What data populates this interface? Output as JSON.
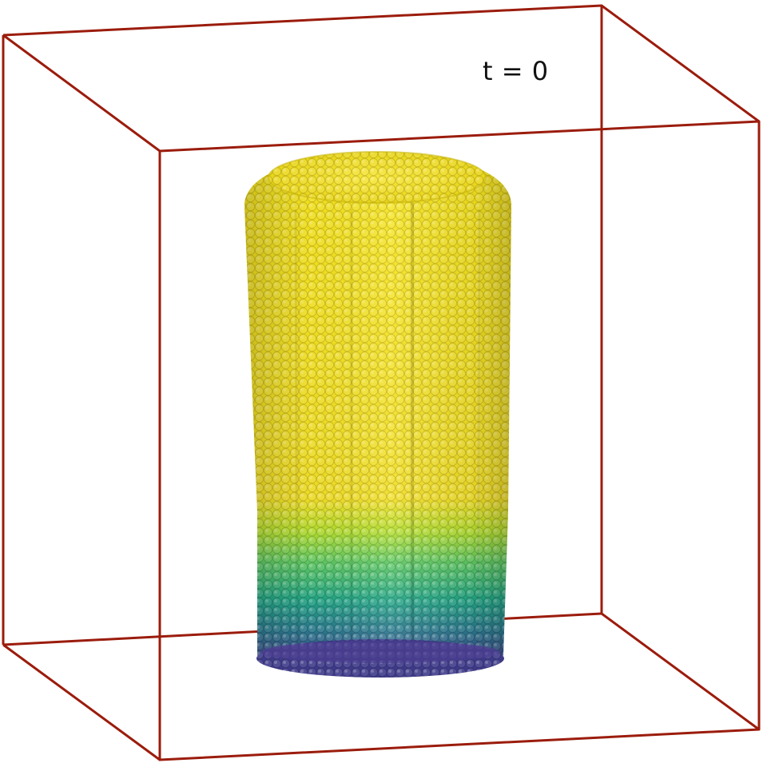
{
  "time_label": "t = 0",
  "colors": {
    "background": "#ffffff",
    "box_edges": "#9b1c0c",
    "particle_top": "#f4e01f",
    "particle_mid_green": "#5ac864",
    "particle_mid_teal": "#21918c",
    "particle_blue": "#3b528b",
    "particle_bottom": "#46337e"
  },
  "particle_colormap": "viridis"
}
